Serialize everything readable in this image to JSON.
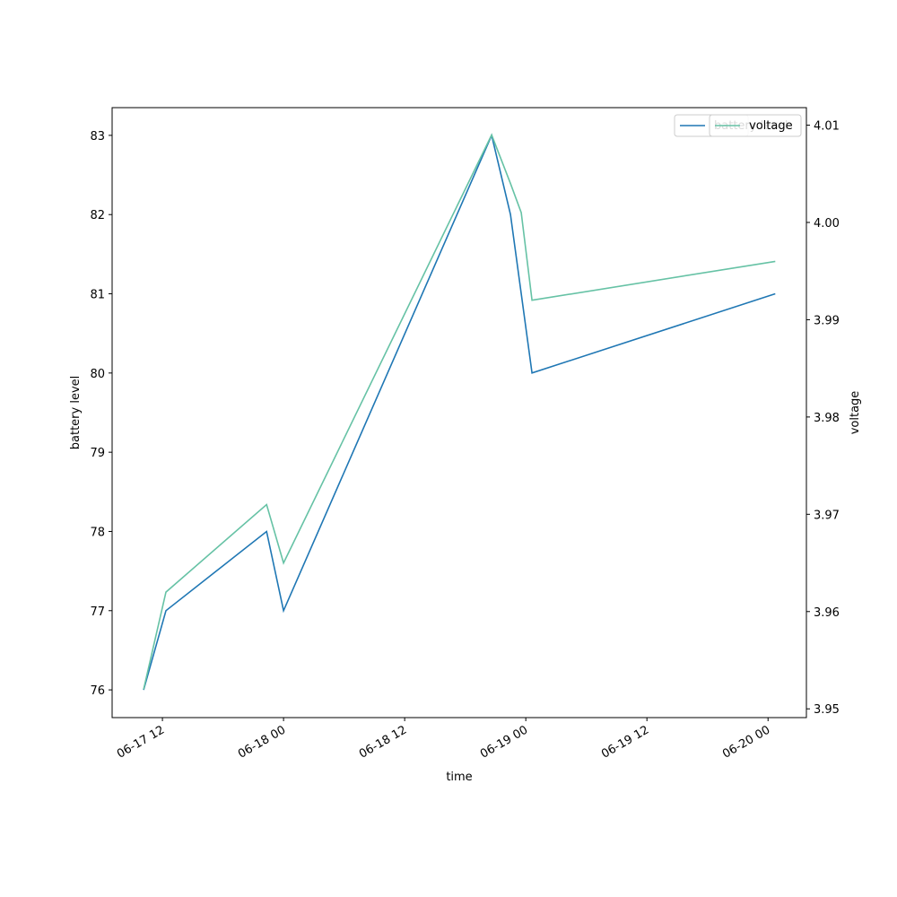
{
  "chart_data": {
    "type": "line",
    "x_label": "time",
    "y_label": "battery level",
    "y2_label": "voltage",
    "x": [
      "06-17 10:08",
      "06-17 12:21",
      "06-17 22:19",
      "06-18 00:00",
      "06-18 20:37",
      "06-18 22:29",
      "06-18 23:33",
      "06-19 00:37",
      "06-20 00:43"
    ],
    "series": [
      {
        "name": "battery level",
        "color": "#1f77b4",
        "values": [
          76,
          77,
          78,
          77,
          83,
          82,
          81,
          80,
          81
        ]
      },
      {
        "name": "voltage",
        "color": "#66c2a5",
        "axis": "y2",
        "values": [
          3.952,
          3.962,
          3.971,
          3.965,
          4.009,
          4.004,
          4.001,
          3.992,
          3.996
        ]
      }
    ],
    "xlim": [
      "06-17 07:01",
      "06-20 03:48"
    ],
    "xticks": [
      "06-17 12",
      "06-18 00",
      "06-18 12",
      "06-19 00",
      "06-19 12",
      "06-20 00"
    ],
    "ylim": [
      75.65,
      83.35
    ],
    "yticks": [
      76,
      77,
      78,
      79,
      80,
      81,
      82,
      83
    ],
    "y2lim": [
      3.9491,
      4.0118
    ],
    "y2ticks": [
      3.95,
      3.96,
      3.97,
      3.98,
      3.99,
      {
        "value": 4.0,
        "label": "4.00"
      },
      4.01
    ],
    "legend": "upper right"
  }
}
